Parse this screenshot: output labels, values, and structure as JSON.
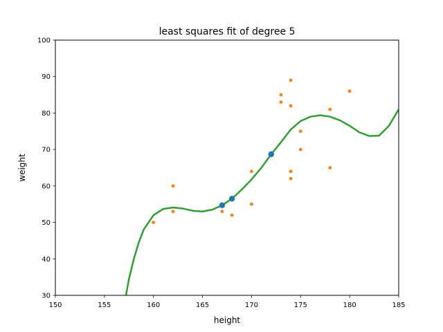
{
  "chart_data": {
    "type": "scatter",
    "title": "least squares fit of degree 5",
    "xlabel": "height",
    "ylabel": "weight",
    "xlim": [
      150,
      185
    ],
    "ylim": [
      30,
      100
    ],
    "xticks": [
      150,
      155,
      160,
      165,
      170,
      175,
      180,
      185
    ],
    "yticks": [
      30,
      40,
      50,
      60,
      70,
      80,
      90,
      100
    ],
    "grid": false,
    "series": [
      {
        "kind": "scatter",
        "color": "#ff7f0e",
        "points": [
          [
            160,
            50
          ],
          [
            162,
            60
          ],
          [
            162,
            53
          ],
          [
            167,
            53
          ],
          [
            168,
            52
          ],
          [
            170,
            64
          ],
          [
            170,
            55
          ],
          [
            173,
            85
          ],
          [
            173,
            83
          ],
          [
            174,
            89
          ],
          [
            174,
            82
          ],
          [
            174,
            64
          ],
          [
            174,
            62
          ],
          [
            175,
            75
          ],
          [
            175,
            70
          ],
          [
            178,
            81
          ],
          [
            178,
            65
          ],
          [
            180,
            86
          ]
        ]
      },
      {
        "kind": "scatter",
        "color": "#1f77b4",
        "points": [
          [
            167,
            54.7
          ],
          [
            168,
            56.5
          ],
          [
            172,
            68.7
          ]
        ]
      },
      {
        "kind": "line",
        "color": "#2ca02c",
        "points": [
          [
            157.2,
            30
          ],
          [
            157.5,
            34.5
          ],
          [
            158,
            40
          ],
          [
            158.5,
            44.5
          ],
          [
            159,
            48
          ],
          [
            160,
            52
          ],
          [
            161,
            53.7
          ],
          [
            162,
            54.1
          ],
          [
            163,
            53.8
          ],
          [
            164,
            53.2
          ],
          [
            165,
            53
          ],
          [
            166,
            53.5
          ],
          [
            167,
            54.7
          ],
          [
            168,
            56.5
          ],
          [
            169,
            59
          ],
          [
            170,
            61.8
          ],
          [
            171,
            65
          ],
          [
            172,
            68.7
          ],
          [
            173,
            72
          ],
          [
            174,
            75.5
          ],
          [
            175,
            77.8
          ],
          [
            176,
            79
          ],
          [
            177,
            79.4
          ],
          [
            178,
            79
          ],
          [
            179,
            78
          ],
          [
            180,
            76.5
          ],
          [
            181,
            74.7
          ],
          [
            182,
            73.7
          ],
          [
            183,
            73.8
          ],
          [
            184,
            76.5
          ],
          [
            185,
            81
          ]
        ]
      }
    ]
  }
}
